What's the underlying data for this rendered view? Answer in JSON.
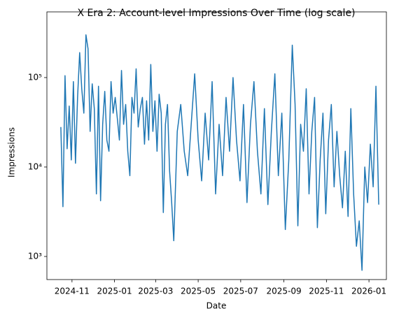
{
  "chart_data": {
    "type": "line",
    "title": "X Era 2: Account-level Impressions Over Time (log scale)",
    "xlabel": "Date",
    "ylabel": "Impressions",
    "yscale": "log",
    "grid": false,
    "xlim": [
      19992,
      20479
    ],
    "ylim": [
      552,
      542000
    ],
    "xticks": [
      {
        "value": 20028,
        "label": "2024-11"
      },
      {
        "value": 20089,
        "label": "2025-01"
      },
      {
        "value": 20148,
        "label": "2025-03"
      },
      {
        "value": 20209,
        "label": "2025-05"
      },
      {
        "value": 20270,
        "label": "2025-07"
      },
      {
        "value": 20332,
        "label": "2025-09"
      },
      {
        "value": 20393,
        "label": "2025-11"
      },
      {
        "value": 20454,
        "label": "2026-01"
      }
    ],
    "yticks": [
      {
        "value": 1000,
        "label": "10³"
      },
      {
        "value": 10000,
        "label": "10⁴"
      },
      {
        "value": 100000,
        "label": "10⁵"
      }
    ],
    "x": [
      20012,
      20015,
      20018,
      20021,
      20024,
      20027,
      20030,
      20033,
      20036,
      20039,
      20042,
      20045,
      20048,
      20051,
      20054,
      20057,
      20060,
      20063,
      20066,
      20069,
      20072,
      20075,
      20078,
      20081,
      20084,
      20087,
      20090,
      20093,
      20096,
      20099,
      20102,
      20105,
      20108,
      20111,
      20114,
      20117,
      20120,
      20123,
      20126,
      20129,
      20132,
      20135,
      20138,
      20141,
      20144,
      20147,
      20150,
      20153,
      20156,
      20159,
      20162,
      20165,
      20168,
      20171,
      20174,
      20179,
      20184,
      20189,
      20194,
      20199,
      20204,
      20209,
      20214,
      20219,
      20224,
      20229,
      20234,
      20239,
      20244,
      20249,
      20254,
      20259,
      20264,
      20269,
      20274,
      20279,
      20284,
      20289,
      20294,
      20299,
      20304,
      20309,
      20314,
      20319,
      20324,
      20329,
      20334,
      20339,
      20344,
      20348,
      20352,
      20356,
      20360,
      20364,
      20368,
      20372,
      20376,
      20380,
      20384,
      20388,
      20392,
      20396,
      20400,
      20404,
      20408,
      20412,
      20416,
      20420,
      20424,
      20428,
      20432,
      20436,
      20440,
      20444,
      20448,
      20452,
      20456,
      20460,
      20464,
      20468
    ],
    "series": [
      {
        "color": "#1f77b4",
        "values": [
          28000,
          3600,
          105000,
          16000,
          48000,
          12000,
          90000,
          11000,
          60000,
          190000,
          75000,
          40000,
          300000,
          210000,
          25000,
          85000,
          45000,
          5000,
          80000,
          4200,
          30000,
          70000,
          20000,
          15000,
          90000,
          40000,
          60000,
          35000,
          20000,
          120000,
          30000,
          50000,
          15000,
          8000,
          60000,
          40000,
          125000,
          28000,
          45000,
          60000,
          18000,
          55000,
          20000,
          140000,
          25000,
          55000,
          15000,
          65000,
          40000,
          3100,
          30000,
          50000,
          9000,
          4000,
          1500,
          25000,
          50000,
          15000,
          8000,
          30000,
          110000,
          20000,
          7000,
          40000,
          12000,
          90000,
          5000,
          30000,
          8000,
          60000,
          15000,
          100000,
          20000,
          7000,
          50000,
          4000,
          30000,
          90000,
          15000,
          5000,
          45000,
          3800,
          25000,
          110000,
          8000,
          40000,
          2000,
          12000,
          230000,
          50000,
          2200,
          30000,
          15000,
          75000,
          5000,
          25000,
          60000,
          2100,
          12000,
          40000,
          3000,
          20000,
          50000,
          6000,
          25000,
          8000,
          3500,
          15000,
          2800,
          45000,
          5000,
          1300,
          2500,
          700,
          10000,
          4000,
          18000,
          6000,
          80000,
          3800
        ]
      }
    ]
  }
}
